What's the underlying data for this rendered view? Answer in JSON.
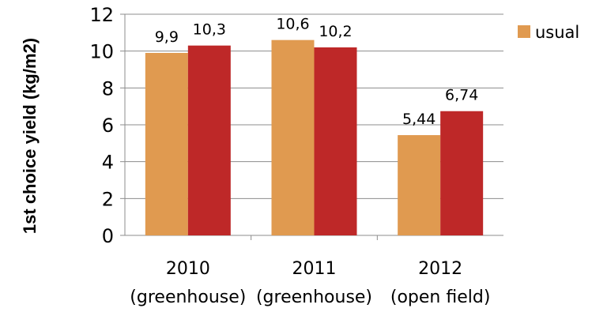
{
  "chart_data": {
    "type": "bar",
    "ylabel": "1st choice yield (kg/m2)",
    "ylim": [
      0,
      12
    ],
    "yticks": [
      0,
      2,
      4,
      6,
      8,
      10,
      12
    ],
    "grid": true,
    "categories": [
      {
        "line1": "2010",
        "line2": "(greenhouse)"
      },
      {
        "line1": "2011",
        "line2": "(greenhouse)"
      },
      {
        "line1": "2012",
        "line2": "(open field)"
      }
    ],
    "series": [
      {
        "name": "usual",
        "color": "#E09A50",
        "values": [
          9.9,
          10.6,
          5.44
        ],
        "labels": [
          "9,9",
          "10,6",
          "5,44"
        ]
      },
      {
        "color": "#BE2828",
        "values": [
          10.3,
          10.2,
          6.74
        ],
        "labels": [
          "10,3",
          "10,2",
          "6,74"
        ]
      }
    ],
    "legend": {
      "position": "top-right",
      "visible_entries": [
        "usual"
      ]
    }
  }
}
